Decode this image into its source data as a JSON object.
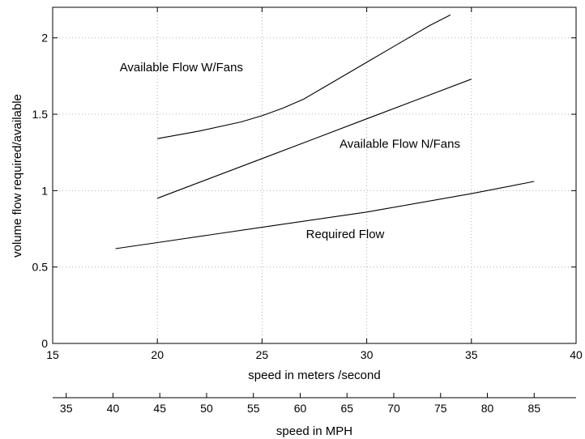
{
  "chart_data": {
    "type": "line",
    "title": "",
    "xlabel": "speed in meters /second",
    "ylabel": "volume flow required/available",
    "xlim": [
      15,
      40
    ],
    "ylim": [
      0,
      2.2
    ],
    "x_ticks": [
      15,
      20,
      25,
      30,
      35,
      40
    ],
    "y_ticks": [
      0,
      0.5,
      1,
      1.5,
      2
    ],
    "grid": true,
    "secondary_x_axis": {
      "label": "speed in MPH",
      "ticks": [
        35,
        40,
        45,
        50,
        55,
        60,
        65,
        70,
        75,
        80,
        85
      ]
    },
    "series": [
      {
        "label": "Available Flow W/Fans",
        "x": [
          20,
          22,
          24,
          25,
          26,
          27,
          28,
          29,
          30,
          31,
          32,
          33,
          34
        ],
        "y": [
          1.34,
          1.39,
          1.45,
          1.49,
          1.54,
          1.6,
          1.68,
          1.76,
          1.84,
          1.92,
          2.0,
          2.08,
          2.15
        ]
      },
      {
        "label": "Available Flow N/Fans",
        "x": [
          20,
          25,
          30,
          35
        ],
        "y": [
          0.95,
          1.21,
          1.47,
          1.73
        ]
      },
      {
        "label": "Required Flow",
        "x": [
          18,
          20,
          25,
          30,
          35,
          38
        ],
        "y": [
          0.62,
          0.66,
          0.76,
          0.86,
          0.98,
          1.06
        ]
      }
    ],
    "annotations": [
      {
        "text": "Available Flow W/Fans",
        "x": 18.2,
        "y": 1.78
      },
      {
        "text": "Available Flow N/Fans",
        "x": 28.7,
        "y": 1.28
      },
      {
        "text": "Required Flow",
        "x": 27.1,
        "y": 0.69
      }
    ]
  }
}
